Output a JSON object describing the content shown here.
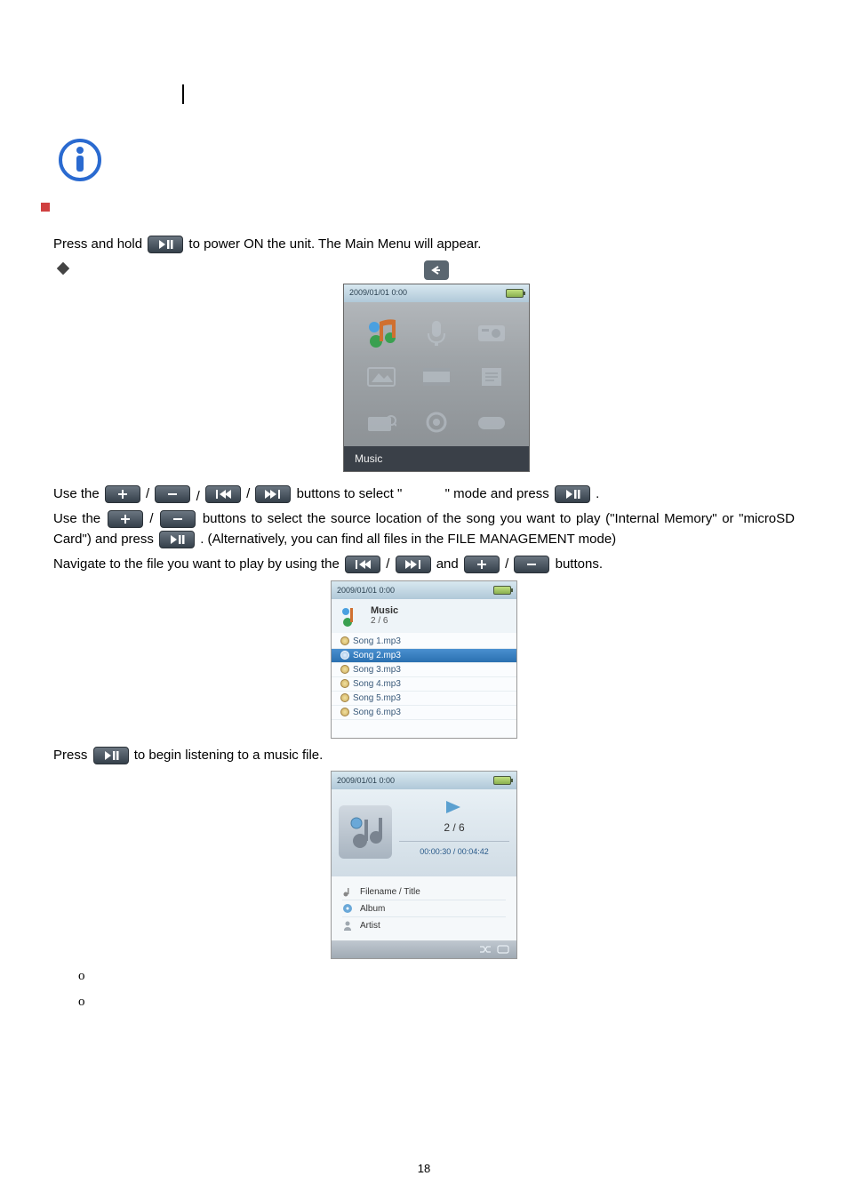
{
  "page_number": "18",
  "intro": {
    "press_hold_prefix": "Press and hold ",
    "press_hold_suffix": " to power ON the unit. The Main Menu will appear."
  },
  "mainmenu": {
    "datetime": "2009/01/01  0:00",
    "label": "Music"
  },
  "line_use1": {
    "p1": "Use the ",
    "sep": " / ",
    "mid": " buttons to select \"",
    "after_quote": "\" mode and press ",
    "period": "."
  },
  "line_use2": {
    "p1": "Use the ",
    "sep": " / ",
    "p2": " buttons to select the source location of the song you want to play   (\"Internal Memory\" or \"microSD Card\") and press ",
    "p3": ". (Alternatively, you can find all files in the FILE MANAGEMENT mode)"
  },
  "line_nav": {
    "p1": "Navigate to the file you want to play by using the ",
    "sep": " / ",
    "and": " and ",
    "end": " buttons."
  },
  "filelist": {
    "datetime": "2009/01/01  0:00",
    "heading": "Music",
    "counter": "2 / 6",
    "items": [
      "Song 1.mp3",
      "Song 2.mp3",
      "Song 3.mp3",
      "Song 4.mp3",
      "Song 5.mp3",
      "Song 6.mp3"
    ],
    "selected_index": 1
  },
  "line_press_begin": {
    "p1": "Press  ",
    "p2": " to begin listening to a music file."
  },
  "player": {
    "datetime": "2009/01/01  0:00",
    "counter": "2 / 6",
    "time": "00:00:30 / 00:04:42",
    "row_title": "Filename / Title",
    "row_album": "Album",
    "row_artist": "Artist"
  },
  "bullets": {
    "o": "o"
  },
  "colors": {
    "btn_bg_top": "#6a7580",
    "btn_bg_bot": "#35404a",
    "red": "#d04040",
    "blue_circle": "#2a6ad0"
  }
}
